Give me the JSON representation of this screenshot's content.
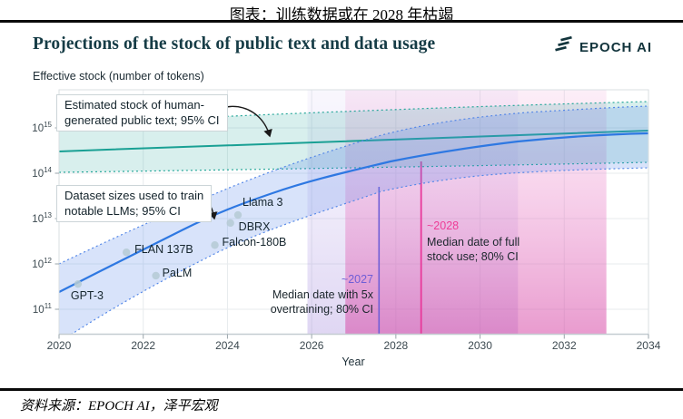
{
  "page": {
    "top_title": "图表：训练数据或在 2028 年枯竭",
    "source": "资料来源：EPOCH AI，泽平宏观"
  },
  "header": {
    "title": "Projections of the stock of public text and data usage",
    "brand": "EPOCH AI"
  },
  "chart": {
    "y_axis_title": "Effective stock (number of tokens)",
    "x_axis_title": "Year",
    "annotations": {
      "stock_l1": "Estimated stock of human-",
      "stock_l2": "generated public text; 95% CI",
      "dataset_l1": "Dataset sizes used to train",
      "dataset_l2": "notable LLMs; 95% CI",
      "overtrain_l1": "Median date with 5x",
      "overtrain_l2": "overtraining; 80% CI",
      "fullstock_l1": "Median date of full",
      "fullstock_l2": "stock use; 80% CI"
    }
  },
  "colors": {
    "title_dark_teal": "#163c46",
    "teal_line": "#19a094",
    "teal_band": "#d7eeec",
    "blue_line": "#2e78e2",
    "blue_band": "#d3e2f8",
    "purple_line": "#6f5ed6",
    "magenta_line": "#e8399a",
    "lavender_band": "#ded6f3",
    "pink_band": "#eba4d6"
  },
  "chart_data": {
    "type": "line",
    "title": "Projections of the stock of public text and data usage",
    "xlabel": "Year",
    "ylabel": "Effective stock (number of tokens)",
    "x_range": [
      2020,
      2034
    ],
    "y_scale": "log10",
    "x_ticks": [
      2020,
      2022,
      2024,
      2026,
      2028,
      2030,
      2032,
      2034
    ],
    "y_tick_exponents": [
      11,
      12,
      13,
      14,
      15
    ],
    "grid": true,
    "series": [
      {
        "name": "Estimated stock of human-generated public text; 95% CI",
        "color": "#19a094",
        "median_points": [
          [
            2020,
            300000000000000.0
          ],
          [
            2034,
            870000000000000.0
          ]
        ],
        "ci95_upper": [
          [
            2020,
            1200000000000000.0
          ],
          [
            2034,
            3800000000000000.0
          ]
        ],
        "ci95_lower": [
          [
            2020,
            105000000000000.0
          ],
          [
            2034,
            170000000000000.0
          ]
        ]
      },
      {
        "name": "Dataset sizes used to train notable LLMs; 95% CI",
        "color": "#2e78e2",
        "median_points": [
          [
            2020,
            260000000000.0
          ],
          [
            2022,
            2100000000000.0
          ],
          [
            2024,
            14000000000000.0
          ],
          [
            2026,
            66000000000000.0
          ],
          [
            2028,
            190000000000000.0
          ],
          [
            2030,
            390000000000000.0
          ],
          [
            2032,
            610000000000000.0
          ],
          [
            2034,
            760000000000000.0
          ]
        ]
      }
    ],
    "models": [
      {
        "label": "GPT-3",
        "year": 2020.45,
        "tokens": 360000000000.0
      },
      {
        "label": "FLAN 137B",
        "year": 2021.6,
        "tokens": 1800000000000.0
      },
      {
        "label": "PaLM",
        "year": 2022.3,
        "tokens": 550000000000.0
      },
      {
        "label": "Falcon-180B",
        "year": 2023.7,
        "tokens": 2600000000000.0
      },
      {
        "label": "DBRX",
        "year": 2024.07,
        "tokens": 8000000000000.0
      },
      {
        "label": "Llama 3",
        "year": 2024.25,
        "tokens": 12000000000000.0
      }
    ],
    "markers": [
      {
        "label": "~2027",
        "year": 2027.6,
        "line_color": "#6f5ed6",
        "ci_80": [
          2025.9,
          2030.9
        ],
        "description": "Median date with 5x overtraining; 80% CI"
      },
      {
        "label": "~2028",
        "year": 2028.6,
        "line_color": "#e8399a",
        "ci_80": [
          2026.8,
          2033.0
        ],
        "description": "Median date of full stock use; 80% CI"
      }
    ]
  }
}
